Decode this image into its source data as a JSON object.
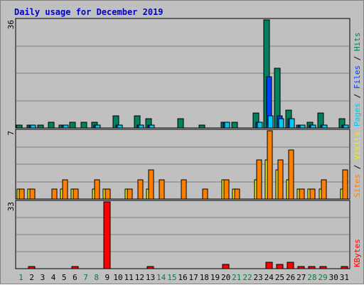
{
  "chart_data": {
    "type": "bar",
    "title": "Daily usage for December 2019",
    "colors": {
      "hits": "#00805c",
      "files": "#0040ff",
      "pages": "#00c8f0",
      "visits": "#f0f000",
      "sites": "#ff8000",
      "kbytes": "#ff0000",
      "weekend_day_label": "#008040",
      "weekday_label": "#000000"
    },
    "days": [
      "1",
      "2",
      "3",
      "4",
      "5",
      "6",
      "7",
      "8",
      "9",
      "10",
      "11",
      "12",
      "13",
      "14",
      "15",
      "16",
      "17",
      "18",
      "19",
      "20",
      "21",
      "22",
      "23",
      "24",
      "25",
      "26",
      "27",
      "28",
      "29",
      "30",
      "31"
    ],
    "weekend_days": [
      1,
      7,
      8,
      14,
      15,
      21,
      22,
      28,
      29
    ],
    "panels": [
      {
        "id": "hits-files-pages",
        "ymax_label": "36",
        "ymax": 36,
        "legend": [
          {
            "text": "Pages",
            "color": "#00c8f0"
          },
          {
            "text": " / ",
            "color": "#000000"
          },
          {
            "text": "Files",
            "color": "#0040ff"
          },
          {
            "text": " / ",
            "color": "#000000"
          },
          {
            "text": "Hits",
            "color": "#00805c"
          }
        ],
        "series": [
          {
            "name": "Hits",
            "color": "#00805c",
            "values": [
              1,
              1,
              1,
              2,
              1,
              2,
              2,
              2,
              0,
              4,
              0,
              4,
              3,
              0,
              0,
              3,
              0,
              1,
              0,
              2,
              2,
              0,
              5,
              36,
              20,
              6,
              1,
              2,
              5,
              0,
              3
            ]
          },
          {
            "name": "Files",
            "color": "#0040ff",
            "values": [
              0,
              1,
              0,
              0,
              1,
              0,
              0,
              1,
              0,
              1,
              0,
              1,
              1,
              0,
              0,
              0,
              0,
              0,
              0,
              2,
              0,
              0,
              2,
              17,
              4,
              3,
              1,
              1,
              1,
              0,
              1
            ]
          },
          {
            "name": "Pages",
            "color": "#00c8f0",
            "values": [
              0,
              1,
              0,
              0,
              1,
              0,
              0,
              1,
              0,
              1,
              0,
              1,
              1,
              0,
              0,
              0,
              0,
              0,
              0,
              2,
              0,
              0,
              2,
              4,
              3,
              3,
              1,
              1,
              1,
              0,
              1
            ]
          }
        ]
      },
      {
        "id": "visits-sites",
        "ymax_label": "7",
        "ymax": 7,
        "legend": [
          {
            "text": "Sites",
            "color": "#ff8000"
          },
          {
            "text": " / ",
            "color": "#000000"
          },
          {
            "text": "Visits",
            "color": "#f0f000"
          }
        ],
        "series": [
          {
            "name": "Visits",
            "color": "#f0f000",
            "values": [
              1,
              1,
              0,
              0,
              1,
              1,
              0,
              1,
              1,
              0,
              1,
              0,
              1,
              0,
              0,
              0,
              0,
              0,
              0,
              2,
              1,
              0,
              2,
              4,
              3,
              2,
              1,
              1,
              1,
              0,
              1
            ]
          },
          {
            "name": "Sites",
            "color": "#ff8000",
            "values": [
              1,
              1,
              0,
              1,
              2,
              1,
              0,
              2,
              1,
              0,
              1,
              2,
              3,
              2,
              0,
              2,
              0,
              1,
              0,
              2,
              1,
              0,
              4,
              7,
              4,
              5,
              1,
              1,
              2,
              0,
              3
            ]
          }
        ]
      },
      {
        "id": "kbytes",
        "ymax_label": "33",
        "ymax": 33,
        "legend": [
          {
            "text": "KBytes",
            "color": "#ff0000"
          }
        ],
        "series": [
          {
            "name": "KBytes",
            "color": "#ff0000",
            "values": [
              0,
              1,
              0,
              0,
              0,
              1,
              0,
              0,
              33,
              0,
              0,
              0,
              1,
              0,
              0,
              0,
              0,
              0,
              0,
              2,
              0,
              0,
              0,
              3,
              2,
              3,
              1,
              1,
              1,
              0,
              1
            ]
          }
        ]
      }
    ]
  }
}
